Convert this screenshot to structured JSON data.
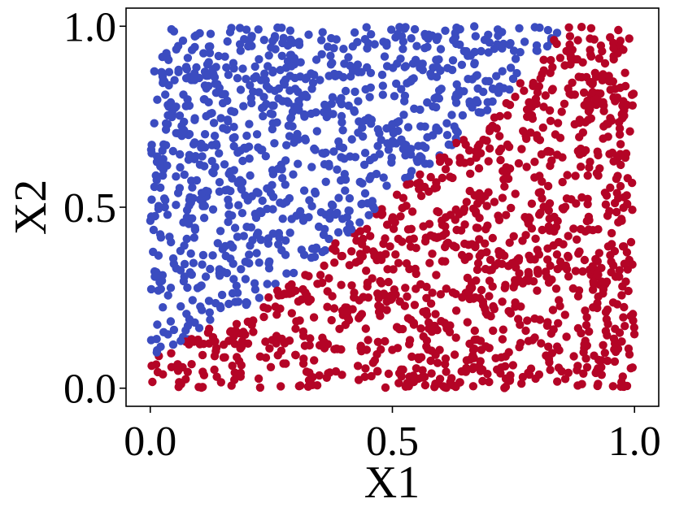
{
  "chart_data": {
    "type": "scatter",
    "title": "",
    "xlabel": "X1",
    "ylabel": "X2",
    "xlim": [
      -0.05,
      1.05
    ],
    "ylim": [
      -0.05,
      1.05
    ],
    "xticks": [
      0.0,
      0.5,
      1.0
    ],
    "yticks": [
      0.0,
      0.5,
      1.0
    ],
    "xtick_labels": [
      "0.0",
      "0.5",
      "1.0"
    ],
    "ytick_labels": [
      "0.0",
      "0.5",
      "1.0"
    ],
    "grid": false,
    "legend": "none",
    "classes": [
      {
        "color": "#3b4cc0",
        "region": "upper-left (x2 above boundary)"
      },
      {
        "color": "#b40426",
        "region": "lower-right (x2 below boundary)"
      }
    ],
    "boundary_points": [
      {
        "x": 0.0,
        "y": 0.08
      },
      {
        "x": 0.1,
        "y": 0.15
      },
      {
        "x": 0.2,
        "y": 0.22
      },
      {
        "x": 0.3,
        "y": 0.31
      },
      {
        "x": 0.4,
        "y": 0.42
      },
      {
        "x": 0.5,
        "y": 0.53
      },
      {
        "x": 0.6,
        "y": 0.64
      },
      {
        "x": 0.7,
        "y": 0.76
      },
      {
        "x": 0.8,
        "y": 0.9
      },
      {
        "x": 0.85,
        "y": 1.0
      }
    ],
    "n_points": 2000
  }
}
